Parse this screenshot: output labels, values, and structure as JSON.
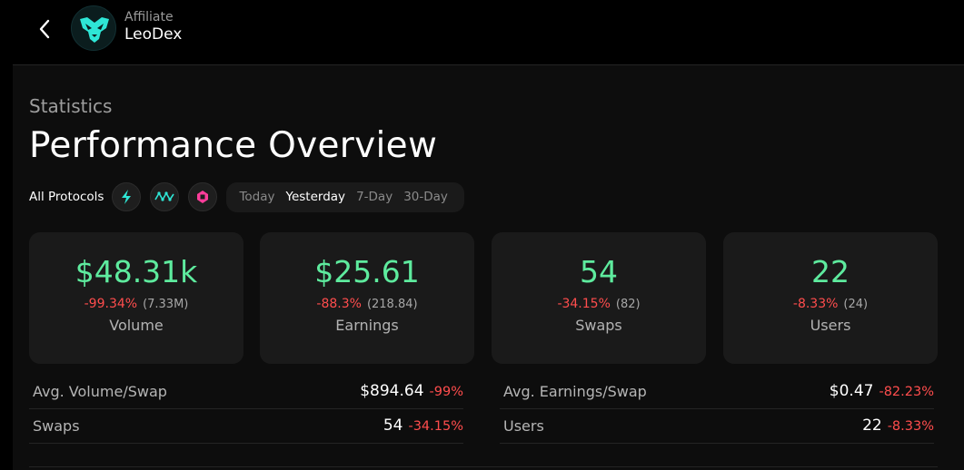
{
  "header": {
    "subtitle": "Affiliate",
    "name": "LeoDex"
  },
  "page": {
    "eyebrow": "Statistics",
    "title": "Performance Overview"
  },
  "filters": {
    "protocols_label": "All Protocols",
    "protocol_icons": [
      "thorchain-icon",
      "maya-icon",
      "chainflip-icon"
    ],
    "ranges": [
      "Today",
      "Yesterday",
      "7-Day",
      "30-Day"
    ],
    "active_range": "Yesterday"
  },
  "cards": [
    {
      "value": "$48.31k",
      "delta": "-99.34%",
      "prev": "(7.33M)",
      "label": "Volume"
    },
    {
      "value": "$25.61",
      "delta": "-88.3%",
      "prev": "(218.84)",
      "label": "Earnings"
    },
    {
      "value": "54",
      "delta": "-34.15%",
      "prev": "(82)",
      "label": "Swaps"
    },
    {
      "value": "22",
      "delta": "-8.33%",
      "prev": "(24)",
      "label": "Users"
    }
  ],
  "stats_left": [
    {
      "label": "Avg. Volume/Swap",
      "value": "$894.64",
      "delta": "-99%"
    },
    {
      "label": "Swaps",
      "value": "54",
      "delta": "-34.15%"
    }
  ],
  "stats_right": [
    {
      "label": "Avg. Earnings/Swap",
      "value": "$0.47",
      "delta": "-82.23%"
    },
    {
      "label": "Users",
      "value": "22",
      "delta": "-8.33%"
    }
  ],
  "colors": {
    "accent_green": "#5eeb9e",
    "negative_red": "#ff4d4d",
    "logo_teal": "#2ee6d6"
  }
}
